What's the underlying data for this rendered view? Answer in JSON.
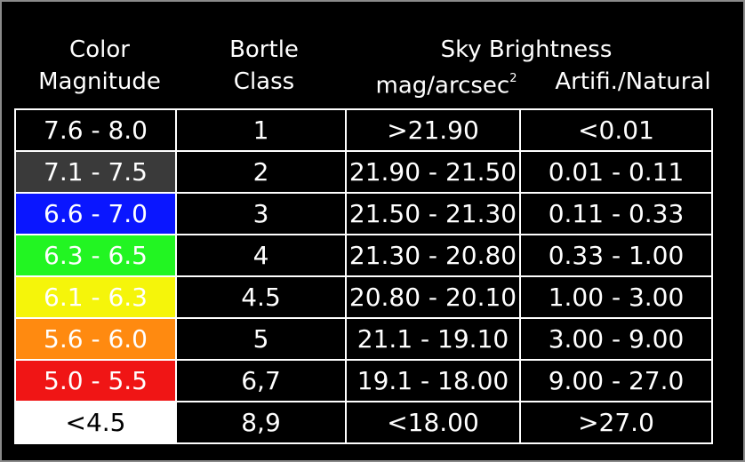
{
  "headers": {
    "color_magnitude_line1": "Color",
    "color_magnitude_line2": "Magnitude",
    "bortle_line1": "Bortle",
    "bortle_line2": "Class",
    "sky_brightness": "Sky Brightness",
    "mag_arcsec": "mag/arcsec",
    "mag_arcsec_exp": "2",
    "artificial_natural": "Artifi./Natural"
  },
  "rows": [
    {
      "magnitude": "7.6 - 8.0",
      "color": "#000000",
      "text_color": "#ffffff",
      "bortle": "1",
      "sky": ">21.90",
      "ratio": "<0.01"
    },
    {
      "magnitude": "7.1 - 7.5",
      "color": "#3a3a3a",
      "text_color": "#ffffff",
      "bortle": "2",
      "sky": "21.90 - 21.50",
      "ratio": "0.01 - 0.11"
    },
    {
      "magnitude": "6.6 - 7.0",
      "color": "#0a16ff",
      "text_color": "#ffffff",
      "bortle": "3",
      "sky": "21.50 - 21.30",
      "ratio": "0.11 - 0.33"
    },
    {
      "magnitude": "6.3 - 6.5",
      "color": "#22f522",
      "text_color": "#ffffff",
      "bortle": "4",
      "sky": "21.30 - 20.80",
      "ratio": "0.33 - 1.00"
    },
    {
      "magnitude": "6.1 - 6.3",
      "color": "#f5f50a",
      "text_color": "#ffffff",
      "bortle": "4.5",
      "sky": "20.80 - 20.10",
      "ratio": "1.00 - 3.00"
    },
    {
      "magnitude": "5.6 - 6.0",
      "color": "#ff8a10",
      "text_color": "#ffffff",
      "bortle": "5",
      "sky": "21.1 - 19.10",
      "ratio": "3.00 - 9.00"
    },
    {
      "magnitude": "5.0 - 5.5",
      "color": "#f01515",
      "text_color": "#ffffff",
      "bortle": "6,7",
      "sky": "19.1 - 18.00",
      "ratio": "9.00 - 27.0"
    },
    {
      "magnitude": "<4.5",
      "color": "#ffffff",
      "text_color": "#000000",
      "bortle": "8,9",
      "sky": "<18.00",
      "ratio": ">27.0"
    }
  ]
}
